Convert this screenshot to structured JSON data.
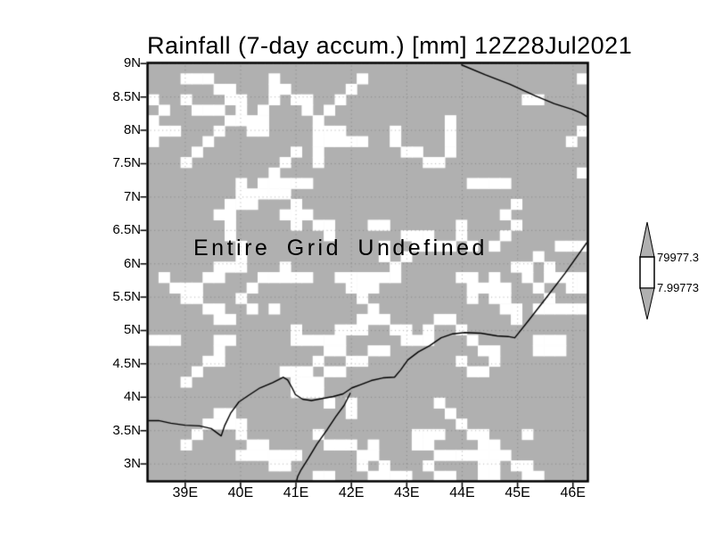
{
  "chart_data": {
    "type": "heatmap",
    "title": "Rainfall (7-day accum.) [mm] 12Z28Jul2021",
    "annotation": "Entire Grid Undefined",
    "grid_defined": false,
    "x_axis": {
      "ticks": [
        "39E",
        "40E",
        "41E",
        "42E",
        "43E",
        "44E",
        "45E",
        "46E"
      ],
      "values": [
        39,
        40,
        41,
        42,
        43,
        44,
        45,
        46
      ],
      "range": [
        38.32,
        46.27
      ]
    },
    "y_axis": {
      "ticks": [
        "9N",
        "8.5N",
        "8N",
        "7.5N",
        "7N",
        "6.5N",
        "6N",
        "5.5N",
        "5N",
        "4.5N",
        "4N",
        "3.5N",
        "3N"
      ],
      "values": [
        9,
        8.5,
        8,
        7.5,
        7,
        6.5,
        6,
        5.5,
        5,
        4.5,
        4,
        3.5,
        3
      ],
      "range": [
        2.74,
        9.01
      ]
    },
    "colorbar": {
      "max_label": "79977.3",
      "min_label": "7.99773",
      "max_value": 79977.3,
      "min_value": 7.99773
    },
    "colors": {
      "undefined_fill": "#b0b0b0",
      "defined_cell": "#ffffff",
      "line": "#000000",
      "grid_dot": "#5a5a5a",
      "background": "#ffffff"
    },
    "texture": {
      "seed": 42,
      "cols": 40,
      "rows": 40,
      "diagonal_streaks": 42,
      "horizontal_runs": 20,
      "vertical_runs": 14,
      "single_cells": 26
    },
    "coastlines": [
      [
        [
          43.99,
          8.98
        ],
        [
          44.42,
          8.83
        ],
        [
          44.86,
          8.69
        ],
        [
          45.31,
          8.52
        ],
        [
          45.66,
          8.4
        ],
        [
          46.0,
          8.31
        ],
        [
          46.15,
          8.26
        ],
        [
          46.28,
          8.19
        ]
      ],
      [
        [
          38.31,
          3.65
        ],
        [
          38.52,
          3.65
        ],
        [
          38.74,
          3.61
        ],
        [
          39.0,
          3.58
        ],
        [
          39.26,
          3.57
        ],
        [
          39.47,
          3.53
        ],
        [
          39.6,
          3.45
        ],
        [
          39.65,
          3.42
        ],
        [
          39.71,
          3.57
        ],
        [
          39.82,
          3.76
        ],
        [
          39.97,
          3.93
        ],
        [
          40.13,
          4.02
        ],
        [
          40.35,
          4.14
        ],
        [
          40.58,
          4.22
        ],
        [
          40.77,
          4.3
        ],
        [
          40.85,
          4.26
        ],
        [
          40.93,
          4.14
        ],
        [
          40.99,
          4.04
        ],
        [
          41.12,
          3.97
        ],
        [
          41.28,
          3.95
        ],
        [
          41.47,
          3.98
        ],
        [
          41.67,
          4.01
        ],
        [
          41.85,
          4.05
        ],
        [
          42.01,
          4.14
        ],
        [
          42.17,
          4.19
        ],
        [
          42.36,
          4.25
        ],
        [
          42.57,
          4.29
        ],
        [
          42.78,
          4.3
        ],
        [
          42.89,
          4.41
        ],
        [
          43.02,
          4.56
        ],
        [
          43.21,
          4.68
        ],
        [
          43.41,
          4.77
        ],
        [
          43.62,
          4.89
        ],
        [
          43.83,
          4.95
        ],
        [
          44.05,
          4.97
        ],
        [
          44.34,
          4.96
        ],
        [
          44.63,
          4.92
        ],
        [
          44.83,
          4.91
        ],
        [
          44.95,
          4.89
        ],
        [
          45.18,
          5.13
        ],
        [
          45.5,
          5.47
        ],
        [
          45.86,
          5.86
        ],
        [
          46.28,
          6.35
        ]
      ],
      [
        [
          41.98,
          4.06
        ],
        [
          41.87,
          3.88
        ],
        [
          41.72,
          3.71
        ],
        [
          41.56,
          3.51
        ],
        [
          41.38,
          3.3
        ],
        [
          41.22,
          3.08
        ],
        [
          41.09,
          2.91
        ],
        [
          41.03,
          2.81
        ],
        [
          41.01,
          2.74
        ]
      ]
    ]
  }
}
